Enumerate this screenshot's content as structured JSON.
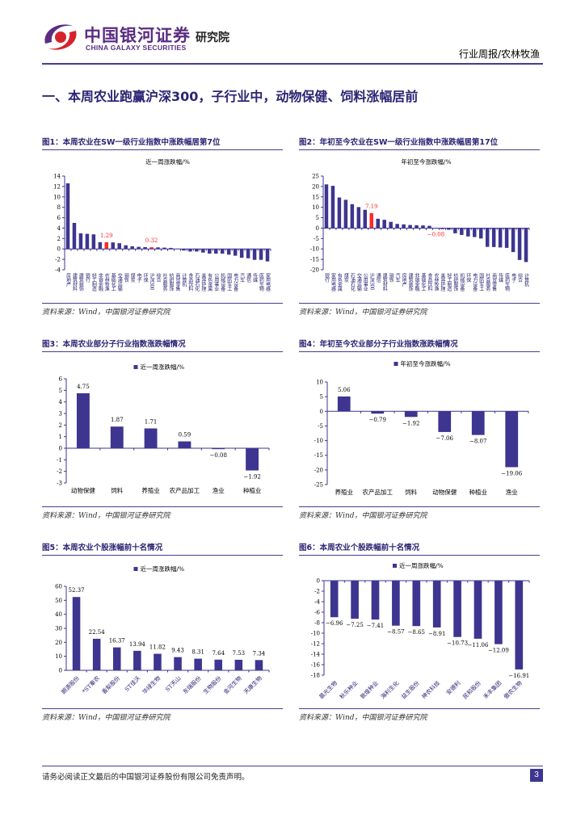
{
  "header": {
    "logo_cn": "中国银河证券",
    "logo_en": "CHINA GALAXY SECURITIES",
    "institute": "研究院",
    "report_type": "行业周报/农林牧渔"
  },
  "section_title": "一、本周农业跑赢沪深300，子行业中，动物保健、饲料涨幅居前",
  "figures": [
    {
      "caption": "图1：本周农业在SW一级行业指数中涨跌幅居第7位",
      "source": "资料来源：Wind，中国银河证券研究院"
    },
    {
      "caption": "图2：年初至今农业在SW一级行业指数中涨跌幅居第17位",
      "source": "资料来源：Wind，中国银河证券研究院"
    },
    {
      "caption": "图3：本周农业部分子行业指数涨跌幅情况",
      "source": "资料来源：Wind，中国银河证券研究院"
    },
    {
      "caption": "图4：年初至今农业部分子行业指数涨跌幅情况",
      "source": "资料来源：Wind，中国银河证券研究院"
    },
    {
      "caption": "图5：本周农业个股涨幅前十名情况",
      "source": "资料来源：Wind，中国银河证券研究院"
    },
    {
      "caption": "图6：本周农业个股跌幅前十名情况",
      "source": "资料来源：Wind，中国银河证券研究院"
    }
  ],
  "colors": {
    "bar": "#3d3590",
    "highlight": "#ff2a2a",
    "accent": "#4b3b8f"
  },
  "chart_data": [
    {
      "type": "bar",
      "title": "近一周涨跌幅/%",
      "legend": "none",
      "ylim": [
        -4,
        14
      ],
      "ystep": 2,
      "categories": [
        "房地产",
        "建筑材料",
        "建筑装饰",
        "银行",
        "轻工制造",
        "非银金融",
        "农林牧渔",
        "基础化工",
        "交通运输",
        "钢铁",
        "煤炭",
        "电子",
        "环保",
        "沪深300",
        "综合",
        "社会服务",
        "纺织服饰",
        "商贸零售",
        "计算机",
        "食品饮料",
        "石油石化",
        "美容护理",
        "有色金属",
        "公用事业",
        "机械设备",
        "国防军工",
        "电力设备",
        "汽车",
        "通信",
        "传媒",
        "医药生物",
        "家用电器"
      ],
      "values": [
        12.6,
        5.0,
        3.0,
        2.9,
        2.8,
        1.3,
        1.29,
        1.25,
        1.1,
        0.7,
        0.5,
        0.4,
        0.35,
        0.32,
        0.3,
        0.25,
        0.2,
        0.05,
        -0.3,
        -0.5,
        -0.5,
        -0.7,
        -0.9,
        -0.9,
        -0.9,
        -1.1,
        -1.3,
        -1.7,
        -1.8,
        -2.1,
        -2.1,
        -2.4
      ],
      "highlight": [
        6,
        13
      ],
      "data_labels": {
        "6": "1.29",
        "13": "0.32"
      }
    },
    {
      "type": "bar",
      "title": "年初至今涨跌幅/%",
      "legend": "none",
      "ylim": [
        -20,
        25
      ],
      "ystep": 5,
      "categories": [
        "银行",
        "家用电器",
        "有色金属",
        "煤炭",
        "石油石化",
        "交通运输",
        "公用事业",
        "沪深300",
        "通信",
        "建筑材料",
        "钢铁",
        "汽车",
        "房地产",
        "建筑装饰",
        "非银金融",
        "基础化工",
        "食品饮料",
        "农林牧渔",
        "美容护理",
        "轻工制造",
        "纺织服饰",
        "机械设备",
        "环保",
        "电力设备",
        "国防军工",
        "社会服务",
        "商贸零售",
        "传媒",
        "医药生物",
        "电子",
        "综合",
        "计算机"
      ],
      "values": [
        21.0,
        20.3,
        14.7,
        13.6,
        11.5,
        10.1,
        8.8,
        7.19,
        4.5,
        4.0,
        3.0,
        2.0,
        1.8,
        1.5,
        1.4,
        1.3,
        1.1,
        -0.08,
        -0.5,
        -0.8,
        -2.5,
        -3.3,
        -4.0,
        -4.3,
        -5.0,
        -9.0,
        -9.1,
        -9.3,
        -9.5,
        -11.5,
        -15.3,
        -16.3
      ],
      "highlight": [
        7,
        17
      ],
      "data_labels": {
        "7": "7.19",
        "17": "-0.08"
      }
    },
    {
      "type": "bar",
      "title": "近一周涨跌幅/%",
      "legend": "top",
      "ylim": [
        -3,
        6
      ],
      "ystep": 1,
      "categories": [
        "动物保健",
        "饲料",
        "养殖业",
        "农产品加工",
        "渔业",
        "种植业"
      ],
      "values": [
        4.75,
        1.87,
        1.71,
        0.59,
        -0.08,
        -1.92
      ],
      "data_labels_all": [
        "4.75",
        "1.87",
        "1.71",
        "0.59",
        "-0.08",
        "-1.92"
      ]
    },
    {
      "type": "bar",
      "title": "年初至今涨跌幅/%",
      "legend": "top",
      "ylim": [
        -25,
        10
      ],
      "ystep": 5,
      "categories": [
        "养殖业",
        "农产品加工",
        "饲料",
        "动物保健",
        "种植业",
        "渔业"
      ],
      "values": [
        5.06,
        -0.79,
        -1.92,
        -7.06,
        -8.07,
        -19.06
      ],
      "data_labels_all": [
        "5.06",
        "-0.79",
        "-1.92",
        "-7.06",
        "-8.07",
        "-19.06"
      ]
    },
    {
      "type": "bar",
      "title": "近一周涨跌幅/%",
      "legend": "top",
      "ylim": [
        0,
        60
      ],
      "ystep": 10,
      "categories": [
        "朗源股份",
        "*ST秦农",
        "香梨股份",
        "ST佳沃",
        "华绿生物",
        "ST天山",
        "东瑞股份",
        "生物股份",
        "金河生物",
        "天康生物"
      ],
      "values": [
        52.37,
        22.54,
        16.37,
        13.94,
        11.82,
        9.43,
        8.31,
        7.64,
        7.53,
        7.34
      ],
      "data_labels_all": [
        "52.37",
        "22.54",
        "16.37",
        "13.94",
        "11.82",
        "9.43",
        "8.31",
        "7.64",
        "7.53",
        "7.34"
      ]
    },
    {
      "type": "bar",
      "title": "近一周涨跌幅/%",
      "legend": "top",
      "ylim": [
        -18,
        0
      ],
      "ystep": 2,
      "categories": [
        "晨光生物",
        "秋乐种业",
        "敦煌种业",
        "海利生化",
        "益生股份",
        "神农科技",
        "安德利",
        "民和股份",
        "禾丰集团",
        "傲农生物"
      ],
      "values": [
        -6.96,
        -7.25,
        -7.41,
        -8.57,
        -8.65,
        -8.91,
        -10.73,
        -11.06,
        -12.09,
        -16.91
      ],
      "data_labels_all": [
        "-6.96",
        "-7.25",
        "-7.41",
        "-8.57",
        "-8.65",
        "-8.91",
        "-10.73",
        "-11.06",
        "-12.09",
        "-16.91"
      ]
    }
  ],
  "footer": {
    "disclaimer": "请务必阅读正文最后的中国银河证券股份有限公司免责声明。",
    "page": "3"
  }
}
